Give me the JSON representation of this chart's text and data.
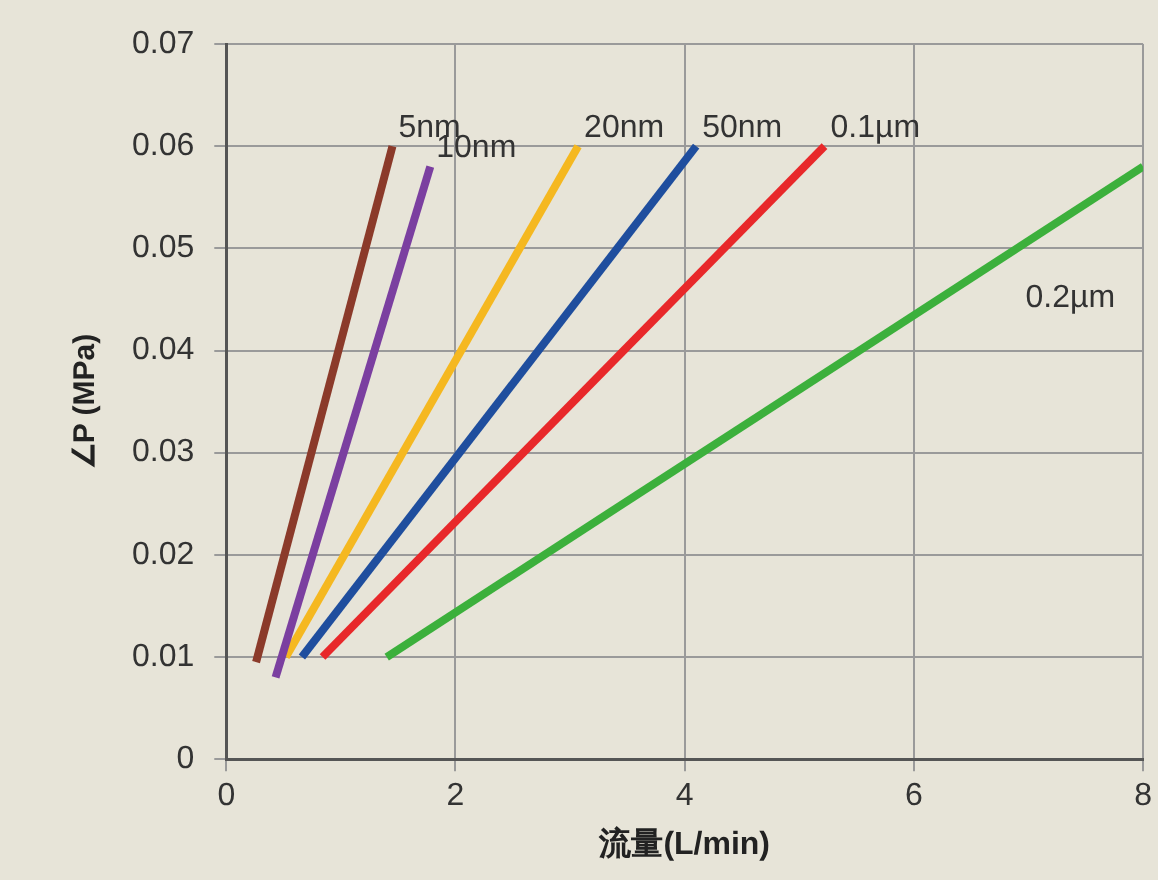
{
  "chart_data": {
    "type": "line",
    "xlabel": "流量(L/min)",
    "ylabel": "∠P (MPa)",
    "xlim": [
      0,
      8
    ],
    "xticks": [
      0,
      2,
      4,
      6,
      8
    ],
    "ylim": [
      0,
      0.07
    ],
    "yticks": [
      0,
      0.01,
      0.02,
      0.03,
      0.04,
      0.05,
      0.06,
      0.07
    ],
    "grid": true,
    "legend": false,
    "marker": "none",
    "line_style": "solid",
    "series": [
      {
        "name": "5nm",
        "color": "#8b3a2a",
        "x": [
          0.26,
          1.45
        ],
        "values": [
          0.0095,
          0.06
        ]
      },
      {
        "name": "10nm",
        "color": "#7b3fa0",
        "x": [
          0.43,
          1.78
        ],
        "values": [
          0.008,
          0.058
        ]
      },
      {
        "name": "20nm",
        "color": "#f5b820",
        "x": [
          0.52,
          3.07
        ],
        "values": [
          0.01,
          0.06
        ]
      },
      {
        "name": "50nm",
        "color": "#1f4e9e",
        "x": [
          0.66,
          4.1
        ],
        "values": [
          0.01,
          0.06
        ]
      },
      {
        "name": "0.1µm",
        "color": "#e8282a",
        "x": [
          0.84,
          5.22
        ],
        "values": [
          0.01,
          0.06
        ]
      },
      {
        "name": "0.2µm",
        "color": "#3cb03c",
        "x": [
          1.4,
          8
        ],
        "values": [
          0.01,
          0.058
        ]
      }
    ]
  }
}
